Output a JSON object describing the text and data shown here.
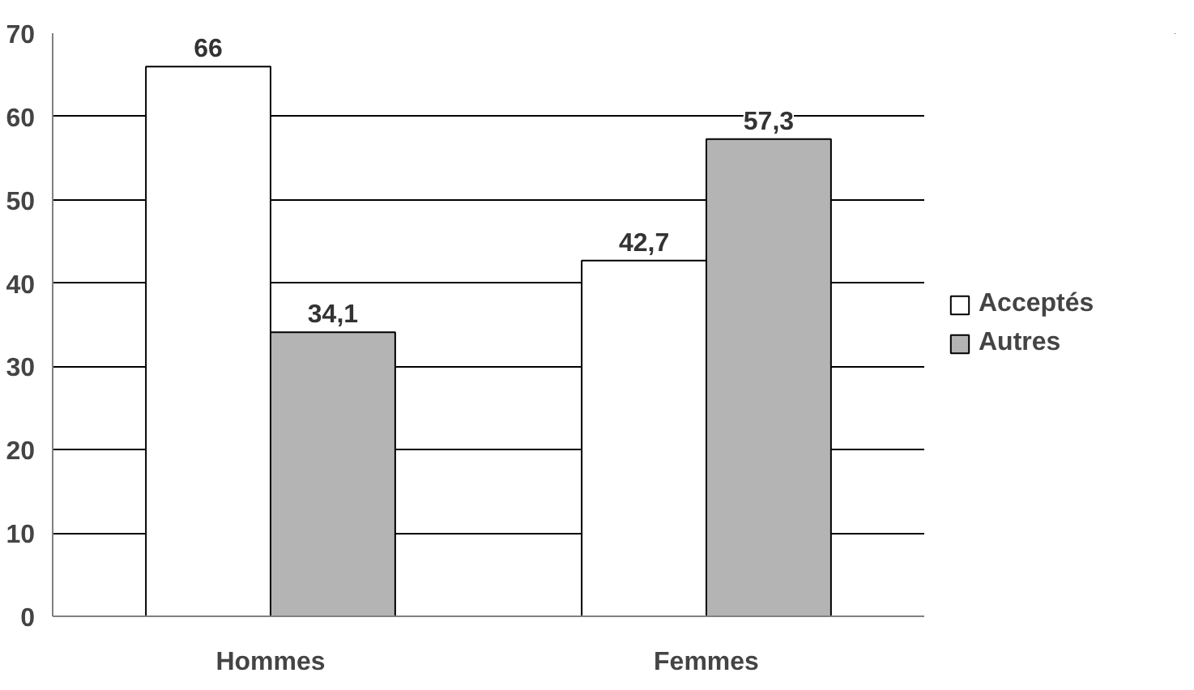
{
  "chart_data": {
    "type": "bar",
    "categories": [
      "Hommes",
      "Femmes"
    ],
    "series": [
      {
        "name": "Acceptés",
        "color": "#ffffff",
        "values": [
          66,
          42.7
        ],
        "value_labels": [
          "66",
          "42,7"
        ]
      },
      {
        "name": "Autres",
        "color": "#b4b4b4",
        "values": [
          34.1,
          57.3
        ],
        "value_labels": [
          "34,1",
          "57,3"
        ]
      }
    ],
    "ylim": [
      0,
      70
    ],
    "yticks": [
      0,
      10,
      20,
      30,
      40,
      50,
      60,
      70
    ],
    "grid": "y",
    "legend": "right"
  }
}
